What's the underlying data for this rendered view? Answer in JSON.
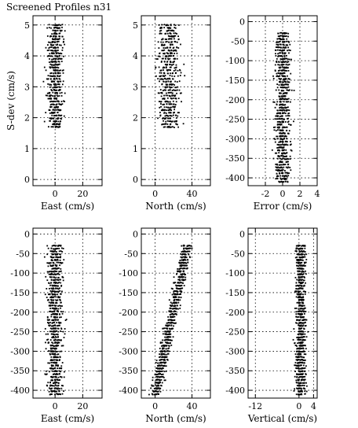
{
  "title": "Screened Profiles n31",
  "chart_data": [
    {
      "type": "scatter",
      "xlabel": "East (cm/s)",
      "ylabel": "S-dev (cm/s)",
      "xlim": [
        -16,
        34
      ],
      "ylim": [
        -0.2,
        5.3
      ],
      "xticks": [
        0,
        20
      ],
      "yticks": [
        0,
        1,
        2,
        3,
        4,
        5
      ],
      "grid": true,
      "clusters": [
        {
          "y_min": 1.7,
          "y_max": 5.0,
          "x_center": 0,
          "x_spread": 10
        },
        {
          "y_min": 0.0,
          "y_max": 0.0,
          "x_center": 0,
          "x_spread": 0
        }
      ]
    },
    {
      "type": "scatter",
      "xlabel": "North (cm/s)",
      "ylabel": "",
      "xlim": [
        -15,
        60
      ],
      "ylim": [
        -0.2,
        5.3
      ],
      "xticks": [
        0,
        40
      ],
      "yticks": [
        0,
        1,
        2,
        3,
        4,
        5
      ],
      "grid": true,
      "clusters": [
        {
          "y_min": 1.7,
          "y_max": 5.0,
          "x_center": 15,
          "x_spread": 20
        },
        {
          "y_min": 0.0,
          "y_max": 0.0,
          "x_center": 0,
          "x_spread": 0
        }
      ]
    },
    {
      "type": "scatter",
      "xlabel": "Error (cm/s)",
      "ylabel": "",
      "xlim": [
        -4,
        4
      ],
      "ylim": [
        -420,
        15
      ],
      "xticks": [
        -2,
        0,
        2,
        4
      ],
      "yticks": [
        0,
        -50,
        -100,
        -150,
        -200,
        -250,
        -300,
        -350,
        -400
      ],
      "grid": true,
      "clusters": [
        {
          "y_min": -410,
          "y_max": -30,
          "x_center": 0,
          "x_spread": 1.5
        }
      ]
    },
    {
      "type": "scatter",
      "xlabel": "East (cm/s)",
      "ylabel": "",
      "xlim": [
        -16,
        34
      ],
      "ylim": [
        -420,
        15
      ],
      "xticks": [
        0,
        20
      ],
      "yticks": [
        0,
        -50,
        -100,
        -150,
        -200,
        -250,
        -300,
        -350,
        -400
      ],
      "grid": true,
      "clusters": [
        {
          "y_min": -410,
          "y_max": -30,
          "x_center": 0,
          "x_spread": 10
        }
      ]
    },
    {
      "type": "scatter",
      "xlabel": "North (cm/s)",
      "ylabel": "",
      "xlim": [
        -15,
        60
      ],
      "ylim": [
        -420,
        15
      ],
      "xticks": [
        0,
        40
      ],
      "yticks": [
        0,
        -50,
        -100,
        -150,
        -200,
        -250,
        -300,
        -350,
        -400
      ],
      "grid": true,
      "clusters": [
        {
          "y_min": -410,
          "y_max": -30,
          "x_center_top": 35,
          "x_center_bottom": 0,
          "x_spread": 10
        }
      ]
    },
    {
      "type": "scatter",
      "xlabel": "Vertical (cm/s)",
      "ylabel": "",
      "xlim": [
        -14,
        5
      ],
      "ylim": [
        -420,
        15
      ],
      "xticks": [
        -12,
        0,
        4
      ],
      "yticks": [
        0,
        -50,
        -100,
        -150,
        -200,
        -250,
        -300,
        -350,
        -400
      ],
      "grid": true,
      "clusters": [
        {
          "y_min": -410,
          "y_max": -30,
          "x_center": 0.5,
          "x_spread": 2.5
        }
      ]
    }
  ]
}
